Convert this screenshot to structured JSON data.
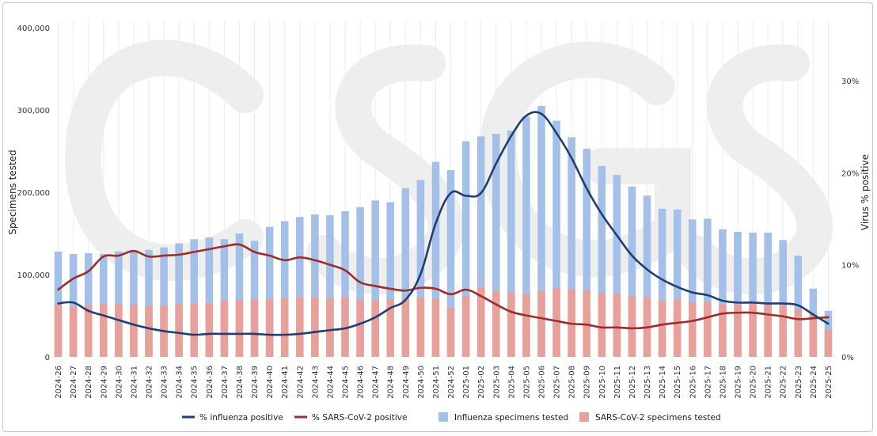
{
  "chart_data": {
    "type": "bar",
    "ylabel": "Specimens tested",
    "y2label": "Virus % positive",
    "ylim": [
      0,
      400000
    ],
    "y2lim": [
      0,
      30
    ],
    "y_ticks": [
      "0",
      "100,000",
      "200,000",
      "300,000",
      "400,000"
    ],
    "y2_ticks": [
      "0%",
      "10%",
      "20%",
      "30%"
    ],
    "grid": "vertical",
    "legend_position": "bottom",
    "categories": [
      "2024-26",
      "2024-27",
      "2024-28",
      "2024-29",
      "2024-30",
      "2024-31",
      "2024-32",
      "2024-33",
      "2024-34",
      "2024-35",
      "2024-36",
      "2024-37",
      "2024-38",
      "2024-39",
      "2024-40",
      "2024-41",
      "2024-42",
      "2024-43",
      "2024-44",
      "2024-45",
      "2024-46",
      "2024-47",
      "2024-48",
      "2024-49",
      "2024-50",
      "2024-51",
      "2024-52",
      "2025-01",
      "2025-02",
      "2025-03",
      "2025-04",
      "2025-05",
      "2025-06",
      "2025-07",
      "2025-08",
      "2025-09",
      "2025-10",
      "2025-11",
      "2025-12",
      "2025-13",
      "2025-14",
      "2025-15",
      "2025-16",
      "2025-17",
      "2025-18",
      "2025-19",
      "2025-20",
      "2025-21",
      "2025-22",
      "2025-23",
      "2025-24",
      "2025-25"
    ],
    "series": [
      {
        "name": "Influenza specimens tested",
        "kind": "bar",
        "axis": "left",
        "color": "#a4bfe8",
        "values": [
          128000,
          125000,
          126000,
          125000,
          128000,
          130000,
          130000,
          133000,
          138000,
          143000,
          145000,
          143000,
          150000,
          141000,
          158000,
          165000,
          170000,
          173000,
          172000,
          177000,
          182000,
          190000,
          188000,
          205000,
          215000,
          237000,
          227000,
          262000,
          268000,
          271000,
          275000,
          292000,
          305000,
          287000,
          267000,
          253000,
          232000,
          221000,
          207000,
          196000,
          180000,
          179000,
          167000,
          168000,
          155000,
          152000,
          151000,
          151000,
          142000,
          123000,
          83000,
          56000
        ]
      },
      {
        "name": "SARS-CoV-2 specimens tested",
        "kind": "bar",
        "axis": "left",
        "color": "#e8a09b",
        "values": [
          63000,
          61000,
          63000,
          64000,
          64000,
          63000,
          62000,
          62000,
          64000,
          65000,
          65000,
          68000,
          69000,
          70000,
          70000,
          71000,
          72000,
          72000,
          71000,
          72000,
          69000,
          69000,
          70000,
          71000,
          72000,
          70000,
          60000,
          74000,
          85000,
          80000,
          78000,
          77000,
          80000,
          83000,
          82000,
          81000,
          78000,
          76000,
          74000,
          72000,
          68000,
          70000,
          66000,
          67000,
          64000,
          64000,
          66000,
          65000,
          63000,
          58000,
          52000,
          33000
        ]
      },
      {
        "name": "% influenza positive",
        "kind": "line",
        "axis": "right",
        "color": "#1f3f73",
        "values": [
          5.8,
          5.9,
          5.0,
          4.5,
          4.0,
          3.5,
          3.1,
          2.8,
          2.6,
          2.4,
          2.5,
          2.5,
          2.5,
          2.5,
          2.4,
          2.4,
          2.5,
          2.7,
          2.9,
          3.1,
          3.6,
          4.3,
          5.3,
          6.2,
          9.0,
          14.5,
          17.8,
          17.5,
          17.8,
          21.0,
          24.0,
          26.2,
          26.4,
          24.3,
          21.6,
          18.3,
          15.5,
          13.2,
          11.0,
          9.5,
          8.4,
          7.6,
          7.0,
          6.7,
          6.1,
          5.9,
          5.9,
          5.8,
          5.8,
          5.6,
          4.6,
          3.6
        ]
      },
      {
        "name": "% SARS-CoV-2 positive",
        "kind": "line",
        "axis": "right",
        "color": "#9b2d2a",
        "values": [
          7.3,
          8.5,
          9.3,
          10.9,
          11.0,
          11.5,
          10.9,
          11.0,
          11.1,
          11.4,
          11.7,
          12.0,
          12.2,
          11.4,
          11.0,
          10.5,
          10.8,
          10.5,
          10.0,
          9.4,
          8.1,
          7.7,
          7.4,
          7.2,
          7.5,
          7.4,
          6.8,
          7.3,
          6.6,
          5.7,
          4.9,
          4.5,
          4.2,
          3.9,
          3.6,
          3.5,
          3.2,
          3.2,
          3.1,
          3.2,
          3.5,
          3.7,
          3.9,
          4.3,
          4.7,
          4.8,
          4.8,
          4.6,
          4.4,
          4.1,
          4.2,
          4.3
        ]
      }
    ]
  }
}
